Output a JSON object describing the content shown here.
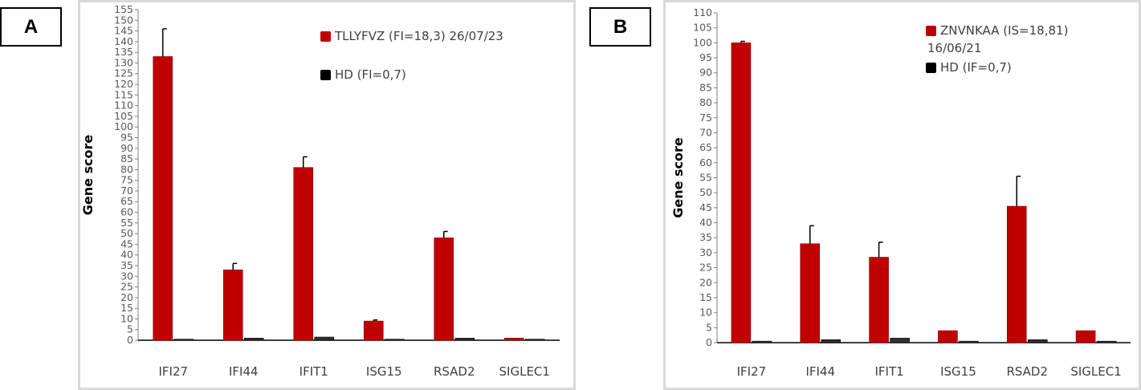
{
  "chart_data": [
    {
      "type": "bar",
      "panel_label": "A",
      "ylabel": "Gene score",
      "categories": [
        "IFI27",
        "IFI44",
        "IFIT1",
        "ISG15",
        "RSAD2",
        "SIGLEC1"
      ],
      "yticks": [
        0,
        5,
        10,
        15,
        20,
        25,
        30,
        35,
        40,
        45,
        50,
        55,
        60,
        65,
        70,
        75,
        80,
        85,
        90,
        95,
        100,
        105,
        110,
        115,
        120,
        125,
        130,
        135,
        140,
        145,
        150,
        155
      ],
      "ylim": [
        0,
        155
      ],
      "legend_position": "top-right",
      "series": [
        {
          "name": "TLLYFVZ (FI=18,3) 26/07/23",
          "color": "#c00000",
          "values": [
            133,
            33,
            81,
            9,
            48,
            1
          ],
          "errors": [
            13,
            3,
            5,
            0.5,
            3,
            0
          ]
        },
        {
          "name": "HD (FI=0,7)",
          "color": "#000000",
          "values": [
            0.5,
            1,
            1.5,
            0.5,
            1,
            0.5
          ],
          "errors": [
            0,
            0,
            0,
            0,
            0,
            0
          ]
        }
      ]
    },
    {
      "type": "bar",
      "panel_label": "B",
      "ylabel": "Gene score",
      "categories": [
        "IFI27",
        "IFI44",
        "IFIT1",
        "ISG15",
        "RSAD2",
        "SIGLEC1"
      ],
      "yticks": [
        0,
        5,
        10,
        15,
        20,
        25,
        30,
        35,
        40,
        45,
        50,
        55,
        60,
        65,
        70,
        75,
        80,
        85,
        90,
        95,
        100,
        105,
        110
      ],
      "ylim": [
        0,
        110
      ],
      "legend_position": "top-right",
      "series": [
        {
          "name": "ZNVNKAA (IS=18,81) 16/06/21",
          "color": "#c00000",
          "values": [
            100,
            33,
            28.5,
            4,
            45.5,
            4
          ],
          "errors": [
            0.5,
            6,
            5,
            0,
            10,
            0
          ]
        },
        {
          "name": "HD (IF=0,7)",
          "color": "#000000",
          "values": [
            0.5,
            1,
            1.5,
            0.5,
            1,
            0.5
          ],
          "errors": [
            0,
            0,
            0,
            0,
            0,
            0
          ]
        }
      ]
    }
  ]
}
